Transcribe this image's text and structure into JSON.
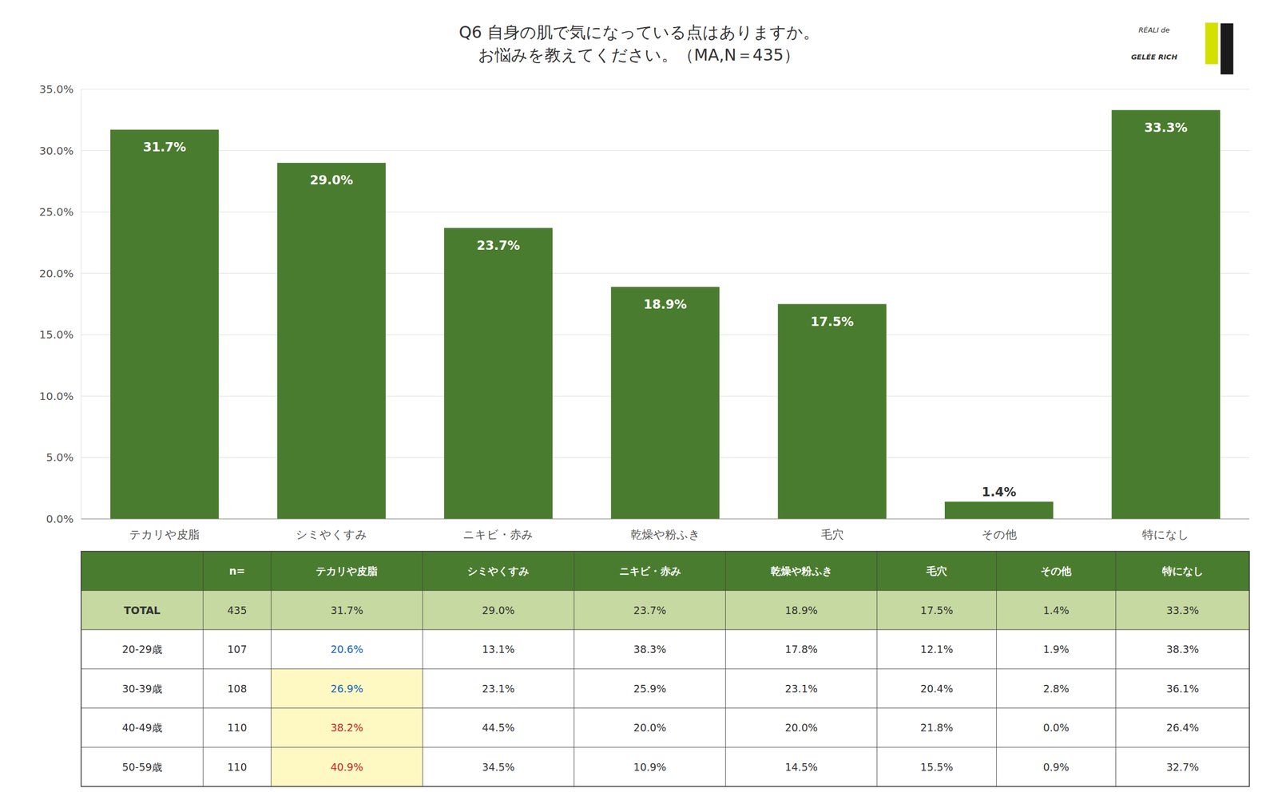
{
  "chart_data": [
    {
      "type": "bar",
      "title": "Q6 自身の肌で気になっている点はありますか。",
      "subtitle": "お悩みを教えてください。（MA,N＝435）",
      "categories": [
        "テカリや皮脂",
        "シミやくすみ",
        "ニキビ・赤み",
        "乾燥や粉ふき",
        "毛穴",
        "その他",
        "特になし"
      ],
      "values": [
        31.7,
        29.0,
        23.7,
        18.9,
        17.5,
        1.4,
        33.3
      ],
      "value_labels": [
        "31.7%",
        "29.0%",
        "23.7%",
        "18.9%",
        "17.5%",
        "1.4%",
        "33.3%"
      ],
      "data_labels": true,
      "color": "#4a7c2f",
      "ylim": [
        0,
        35.0
      ],
      "yticks": [
        {
          "value": 0.0,
          "label": "0.0%"
        },
        {
          "value": 5.0,
          "label": "5.0%"
        },
        {
          "value": 10.0,
          "label": "10.0%"
        },
        {
          "value": 15.0,
          "label": "15.0%"
        },
        {
          "value": 20.0,
          "label": "20.0%"
        },
        {
          "value": 25.0,
          "label": "25.0%"
        },
        {
          "value": 30.0,
          "label": "30.0%"
        },
        {
          "value": 35.0,
          "label": "35.0%"
        }
      ],
      "grid": true,
      "annotations": [
        "RÉALI de",
        "GELÉE RICH"
      ]
    },
    {
      "type": "table",
      "columns": [
        null,
        "n=",
        "テカリや皮脂",
        "シミやくすみ",
        "ニキビ・赤み",
        "乾燥や粉ふき",
        "毛穴",
        "その他",
        "特になし"
      ],
      "color": "#4a7c2f",
      "rows": [
        {
          "label": "TOTAL",
          "n": 435,
          "values": [
            31.7,
            29.0,
            23.7,
            18.9,
            17.5,
            1.4,
            33.3
          ],
          "value_labels": [
            "31.7%",
            "29.0%",
            "23.7%",
            "18.9%",
            "17.5%",
            "1.4%",
            "33.3%"
          ],
          "color": "#c5d9a0",
          "colors": [
            "#333333",
            "#333333",
            "#333333",
            "#333333",
            "#333333",
            "#333333",
            "#333333"
          ],
          "cell_colors": [
            "#c5d9a0",
            "#c5d9a0",
            "#c5d9a0",
            "#c5d9a0",
            "#c5d9a0",
            "#c5d9a0",
            "#c5d9a0"
          ]
        },
        {
          "label": "20-29歳",
          "n": 107,
          "values": [
            20.6,
            13.1,
            38.3,
            17.8,
            12.1,
            1.9,
            38.3
          ],
          "value_labels": [
            "20.6%",
            "13.1%",
            "38.3%",
            "17.8%",
            "12.1%",
            "1.9%",
            "38.3%"
          ],
          "color": "#ffffff",
          "colors": [
            "#1565c0",
            "#333333",
            "#333333",
            "#333333",
            "#333333",
            "#333333",
            "#333333"
          ],
          "cell_colors": [
            "#ffffff",
            "#ffffff",
            "#ffffff",
            "#ffffff",
            "#ffffff",
            "#ffffff",
            "#ffffff"
          ]
        },
        {
          "label": "30-39歳",
          "n": 108,
          "values": [
            26.9,
            23.1,
            25.9,
            23.1,
            20.4,
            2.8,
            36.1
          ],
          "value_labels": [
            "26.9%",
            "23.1%",
            "25.9%",
            "23.1%",
            "20.4%",
            "2.8%",
            "36.1%"
          ],
          "color": "#ffffff",
          "colors": [
            "#1565c0",
            "#333333",
            "#333333",
            "#333333",
            "#333333",
            "#333333",
            "#333333"
          ],
          "cell_colors": [
            "#fef9c3",
            "#ffffff",
            "#ffffff",
            "#ffffff",
            "#ffffff",
            "#ffffff",
            "#ffffff"
          ]
        },
        {
          "label": "40-49歳",
          "n": 110,
          "values": [
            38.2,
            44.5,
            20.0,
            20.0,
            21.8,
            0.0,
            26.4
          ],
          "value_labels": [
            "38.2%",
            "44.5%",
            "20.0%",
            "20.0%",
            "21.8%",
            "0.0%",
            "26.4%"
          ],
          "color": "#ffffff",
          "colors": [
            "#c62828",
            "#333333",
            "#333333",
            "#333333",
            "#333333",
            "#333333",
            "#333333"
          ],
          "cell_colors": [
            "#fef9c3",
            "#ffffff",
            "#ffffff",
            "#ffffff",
            "#ffffff",
            "#ffffff",
            "#ffffff"
          ]
        },
        {
          "label": "50-59歳",
          "n": 110,
          "values": [
            40.9,
            34.5,
            10.9,
            14.5,
            15.5,
            0.9,
            32.7
          ],
          "value_labels": [
            "40.9%",
            "34.5%",
            "10.9%",
            "14.5%",
            "15.5%",
            "0.9%",
            "32.7%"
          ],
          "color": "#ffffff",
          "colors": [
            "#c62828",
            "#333333",
            "#333333",
            "#333333",
            "#333333",
            "#333333",
            "#333333"
          ],
          "cell_colors": [
            "#fef9c3",
            "#ffffff",
            "#ffffff",
            "#ffffff",
            "#ffffff",
            "#ffffff",
            "#ffffff"
          ]
        }
      ]
    }
  ]
}
